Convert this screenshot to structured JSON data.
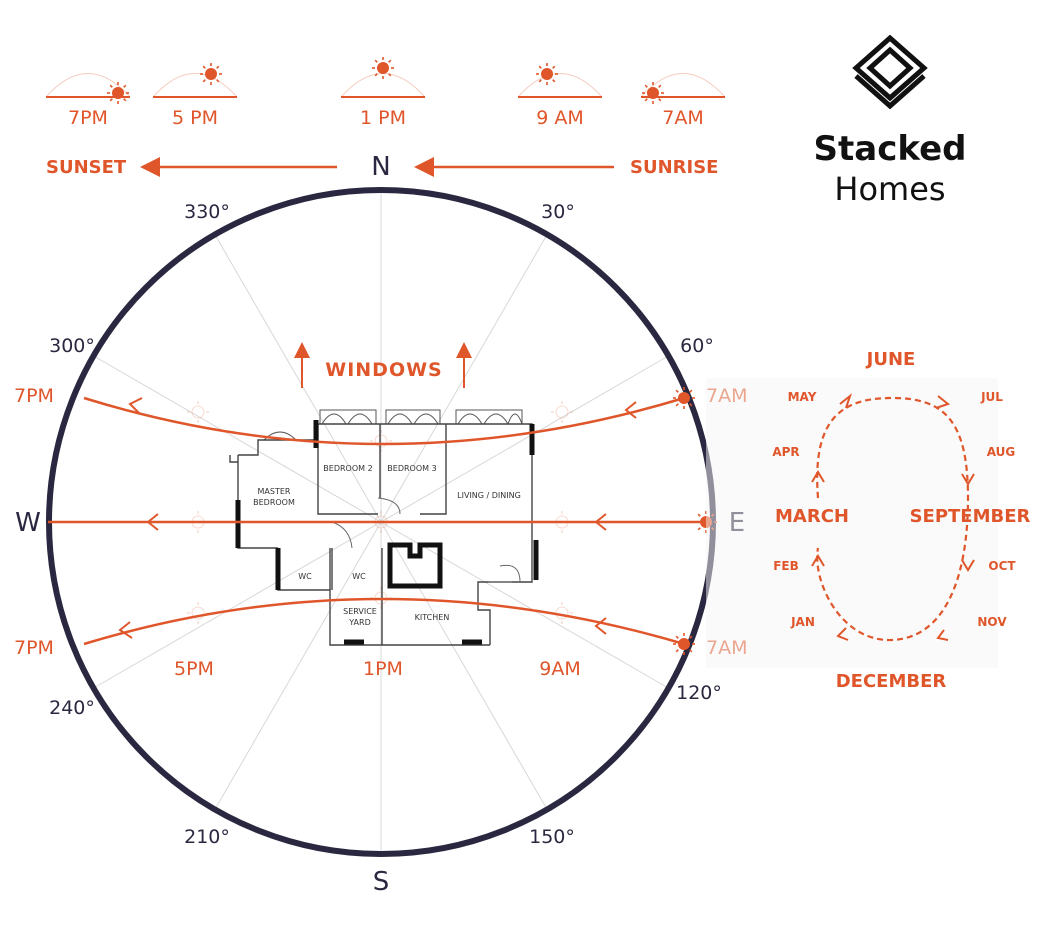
{
  "brand": {
    "name_line1": "Stacked",
    "name_line2": "Homes",
    "logo_icon": "stacked-layers-icon"
  },
  "sun_times_top": [
    "7PM",
    "5 PM",
    "1 PM",
    "9 AM",
    "7AM"
  ],
  "sunset_label": "SUNSET",
  "sunrise_label": "SUNRISE",
  "compass": {
    "north": "N",
    "south": "S",
    "east": "E",
    "west": "W",
    "degrees": [
      "30°",
      "60°",
      "120°",
      "150°",
      "210°",
      "240°",
      "300°",
      "330°"
    ]
  },
  "windows_label": "WINDOWS",
  "sun_paths": {
    "summer": {
      "start": "7AM",
      "end": "7PM"
    },
    "equinox": {
      "start": "E",
      "end": "W"
    },
    "winter": {
      "start": "7AM",
      "end": "7PM"
    }
  },
  "bottom_times": [
    "5PM",
    "1PM",
    "9AM"
  ],
  "rooms": [
    "MASTER BEDROOM",
    "BEDROOM 2",
    "BEDROOM 3",
    "LIVING / DINING",
    "WC",
    "WC",
    "SERVICE YARD",
    "KITCHEN"
  ],
  "seasonal_cycle": {
    "june": "JUNE",
    "september": "SEPTEMBER",
    "december": "DECEMBER",
    "march": "MARCH",
    "months": [
      "MAY",
      "JUL",
      "APR",
      "AUG",
      "FEB",
      "OCT",
      "JAN",
      "NOV"
    ]
  },
  "colors": {
    "accent": "#e0562b",
    "circle": "#2a2840",
    "text_dark": "#2a2840"
  }
}
